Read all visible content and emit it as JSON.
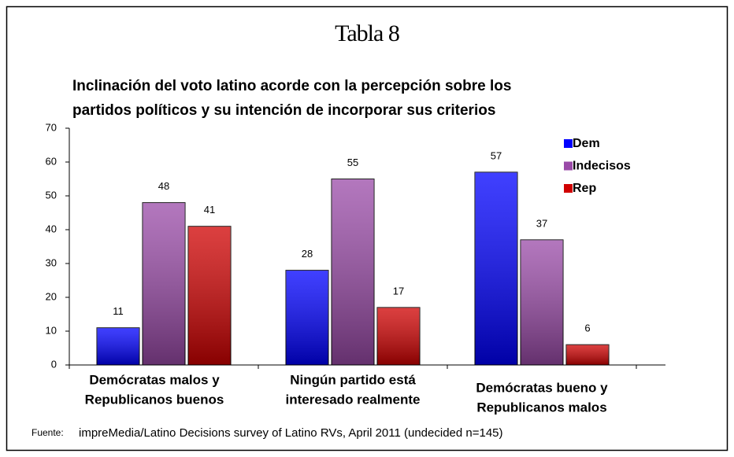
{
  "header": {
    "title": "Tabla 8"
  },
  "chart_data": {
    "type": "bar",
    "title": [
      "Inclinación del voto latino acorde con la percepción sobre los",
      "partidos políticos y su intención de incorporar sus criterios"
    ],
    "categories": [
      [
        "Demócratas malos y",
        "Republicanos buenos"
      ],
      [
        "Ningún partido está",
        "interesado realmente"
      ],
      [
        "Demócratas bueno y",
        "Republicanos malos"
      ]
    ],
    "series": [
      {
        "name": "Dem",
        "color": "#0000ff",
        "values": [
          11,
          28,
          57
        ]
      },
      {
        "name": "Indecisos",
        "color": "#9a4aa8",
        "values": [
          48,
          55,
          37
        ]
      },
      {
        "name": "Rep",
        "color": "#d00000",
        "values": [
          41,
          17,
          6
        ]
      }
    ],
    "ylim": [
      0,
      70
    ],
    "yticks": [
      0,
      10,
      20,
      30,
      40,
      50,
      60,
      70
    ],
    "grid": false,
    "legend": "top-right"
  },
  "footer": {
    "label": "Fuente:",
    "source": "impreMedia/Latino Decisions survey of Latino RVs, April 2011 (undecided n=145)"
  }
}
